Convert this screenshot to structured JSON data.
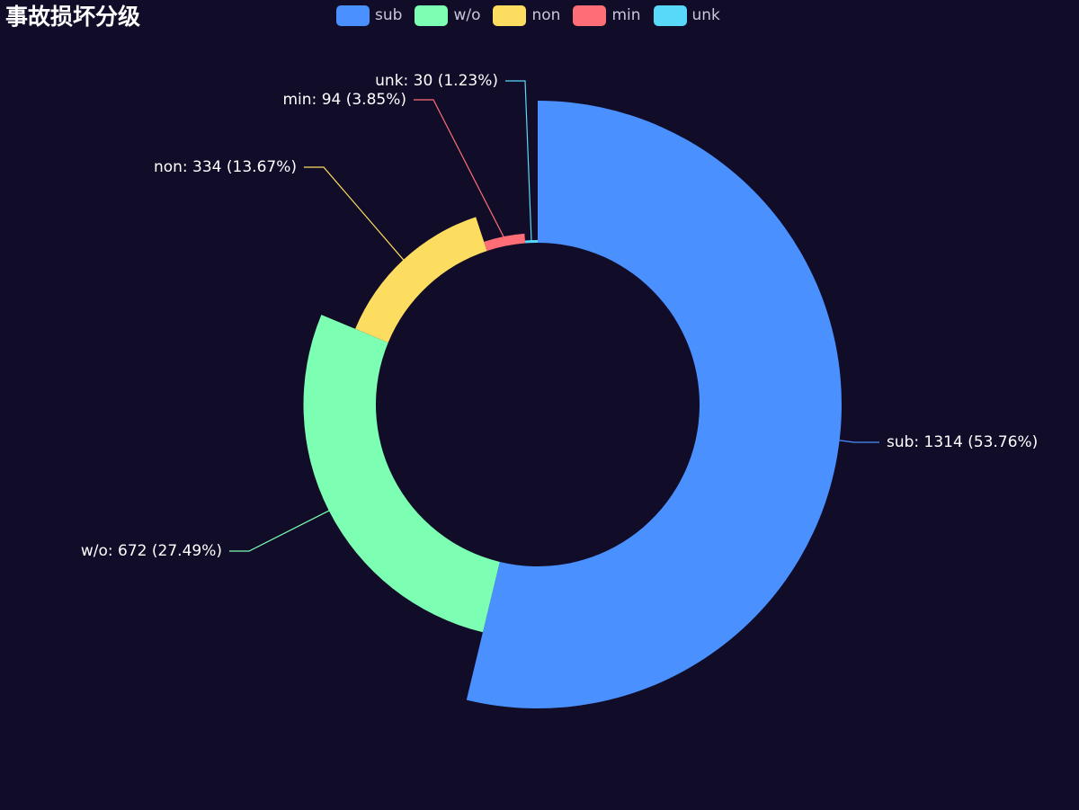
{
  "title": "事故损坏分级",
  "colors": {
    "background": "#110c28"
  },
  "legend": [
    {
      "label": "sub",
      "color": "#4a90ff"
    },
    {
      "label": "w/o",
      "color": "#7dffb3"
    },
    {
      "label": "non",
      "color": "#fddd60"
    },
    {
      "label": "min",
      "color": "#ff6e76"
    },
    {
      "label": "unk",
      "color": "#58d9f9"
    }
  ],
  "chart_data": {
    "type": "pie",
    "variant": "rose-donut",
    "title": "事故损坏分级",
    "legend_position": "top-center",
    "series": [
      {
        "name": "sub",
        "value": 1314,
        "percent": "53.76%",
        "color": "#4a90ff",
        "label": "sub: 1314 (53.76%)"
      },
      {
        "name": "w/o",
        "value": 672,
        "percent": "27.49%",
        "color": "#7dffb3",
        "label": "w/o: 672 (27.49%)"
      },
      {
        "name": "non",
        "value": 334,
        "percent": "13.67%",
        "color": "#fddd60",
        "label": "non: 334 (13.67%)"
      },
      {
        "name": "min",
        "value": 94,
        "percent": "3.85%",
        "color": "#ff6e76",
        "label": "min: 94 (3.85%)"
      },
      {
        "name": "unk",
        "value": 30,
        "percent": "1.23%",
        "color": "#58d9f9",
        "label": "unk: 30 (1.23%)"
      }
    ]
  }
}
